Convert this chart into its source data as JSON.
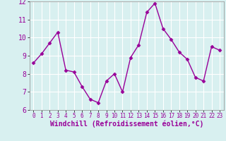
{
  "x": [
    0,
    1,
    2,
    3,
    4,
    5,
    6,
    7,
    8,
    9,
    10,
    11,
    12,
    13,
    14,
    15,
    16,
    17,
    18,
    19,
    20,
    21,
    22,
    23
  ],
  "y": [
    8.6,
    9.1,
    9.7,
    10.3,
    8.2,
    8.1,
    7.3,
    6.6,
    6.4,
    7.6,
    8.0,
    7.0,
    8.9,
    9.6,
    11.4,
    11.9,
    10.5,
    9.9,
    9.2,
    8.8,
    7.8,
    7.6,
    9.5,
    9.3
  ],
  "line_color": "#990099",
  "marker": "D",
  "markersize": 2.5,
  "linewidth": 1.0,
  "xlabel": "Windchill (Refroidissement éolien,°C)",
  "xlabel_fontsize": 7,
  "xlim": [
    -0.5,
    23.5
  ],
  "ylim": [
    6,
    12
  ],
  "yticks": [
    6,
    7,
    8,
    9,
    10,
    11,
    12
  ],
  "xticks": [
    0,
    1,
    2,
    3,
    4,
    5,
    6,
    7,
    8,
    9,
    10,
    11,
    12,
    13,
    14,
    15,
    16,
    17,
    18,
    19,
    20,
    21,
    22,
    23
  ],
  "bg_color": "#d8f0f0",
  "grid_color": "#ffffff",
  "tick_label_fontsize": 7,
  "xtick_label_fontsize": 5.5
}
